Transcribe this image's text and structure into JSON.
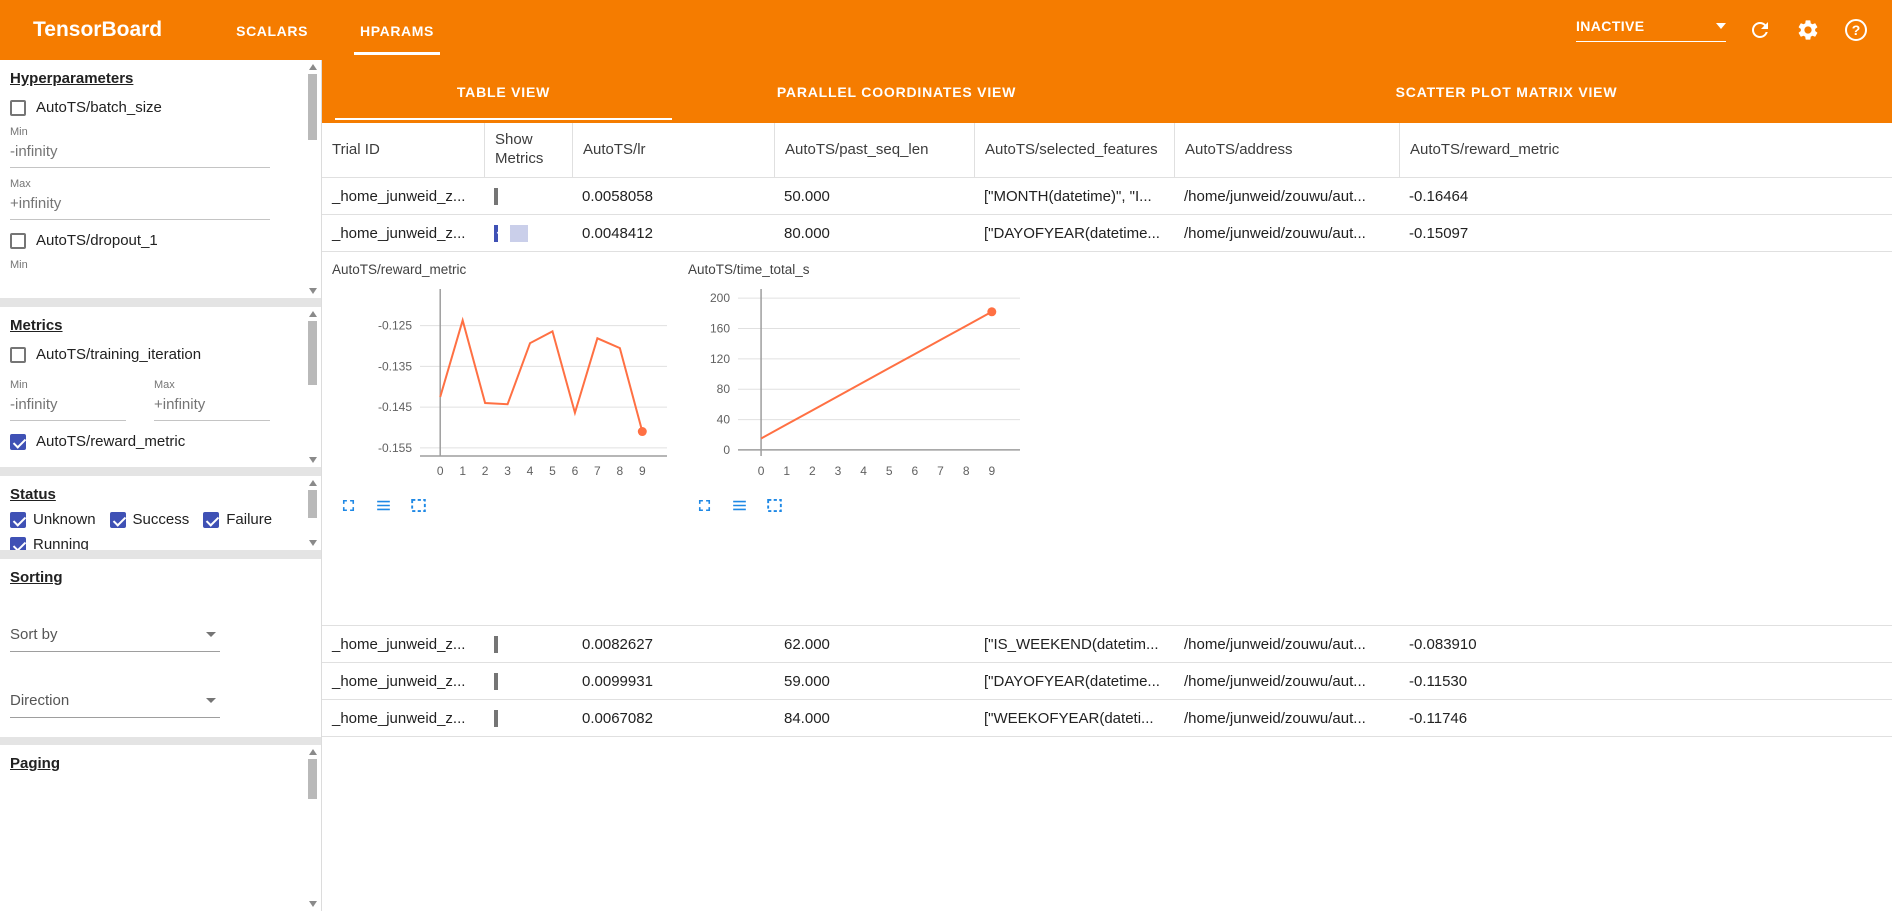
{
  "header": {
    "title": "TensorBoard",
    "nav_tabs": [
      {
        "label": "SCALARS"
      },
      {
        "label": "HPARAMS"
      }
    ],
    "run_status": "INACTIVE"
  },
  "sidebar": {
    "hparams": {
      "heading": "Hyperparameters",
      "items": [
        {
          "label": "AutoTS/batch_size",
          "checked": false
        },
        {
          "label": "AutoTS/dropout_1",
          "checked": false
        }
      ],
      "min_label": "Min",
      "max_label": "Max",
      "min_value": "-infinity",
      "max_value": "+infinity"
    },
    "metrics": {
      "heading": "Metrics",
      "items": [
        {
          "label": "AutoTS/training_iteration",
          "checked": false
        },
        {
          "label": "AutoTS/reward_metric",
          "checked": true
        }
      ],
      "min_label": "Min",
      "max_label": "Max",
      "min_value": "-infinity",
      "max_value": "+infinity"
    },
    "status": {
      "heading": "Status",
      "items": [
        {
          "label": "Unknown",
          "checked": true
        },
        {
          "label": "Success",
          "checked": true
        },
        {
          "label": "Failure",
          "checked": true
        },
        {
          "label": "Running",
          "checked": true
        }
      ]
    },
    "sorting": {
      "heading": "Sorting",
      "sort_by_label": "Sort by",
      "direction_label": "Direction"
    },
    "paging": {
      "heading": "Paging"
    }
  },
  "views": {
    "tabs": [
      {
        "label": "TABLE VIEW",
        "active": true
      },
      {
        "label": "PARALLEL COORDINATES VIEW",
        "active": false
      },
      {
        "label": "SCATTER PLOT MATRIX VIEW",
        "active": false
      }
    ]
  },
  "table": {
    "columns": [
      "Trial ID",
      "Show Metrics",
      "AutoTS/lr",
      "AutoTS/past_seq_len",
      "AutoTS/selected_features",
      "AutoTS/address",
      "AutoTS/reward_metric"
    ],
    "rows": [
      {
        "trial_id": "_home_junweid_z...",
        "show_metrics": false,
        "lr": "0.0058058",
        "past_seq_len": "50.000",
        "selected_features": "[\"MONTH(datetime)\", \"I...",
        "address": "/home/junweid/zouwu/aut...",
        "reward_metric": "-0.16464"
      },
      {
        "trial_id": "_home_junweid_z...",
        "show_metrics": true,
        "lr": "0.0048412",
        "past_seq_len": "80.000",
        "selected_features": "[\"DAYOFYEAR(datetime...",
        "address": "/home/junweid/zouwu/aut...",
        "reward_metric": "-0.15097"
      },
      {
        "trial_id": "_home_junweid_z...",
        "show_metrics": false,
        "lr": "0.0082627",
        "past_seq_len": "62.000",
        "selected_features": "[\"IS_WEEKEND(datetim...",
        "address": "/home/junweid/zouwu/aut...",
        "reward_metric": "-0.083910"
      },
      {
        "trial_id": "_home_junweid_z...",
        "show_metrics": false,
        "lr": "0.0099931",
        "past_seq_len": "59.000",
        "selected_features": "[\"DAYOFYEAR(datetime...",
        "address": "/home/junweid/zouwu/aut...",
        "reward_metric": "-0.11530"
      },
      {
        "trial_id": "_home_junweid_z...",
        "show_metrics": false,
        "lr": "0.0067082",
        "past_seq_len": "84.000",
        "selected_features": "[\"WEEKOFYEAR(dateti...",
        "address": "/home/junweid/zouwu/aut...",
        "reward_metric": "-0.11746"
      }
    ]
  },
  "chart_data": [
    {
      "type": "line",
      "title": "AutoTS/reward_metric",
      "x": [
        0,
        1,
        2,
        3,
        4,
        5,
        6,
        7,
        8,
        9
      ],
      "values": [
        -0.1425,
        -0.1237,
        -0.144,
        -0.1443,
        -0.1293,
        -0.1264,
        -0.1464,
        -0.1281,
        -0.1305,
        -0.151
      ],
      "xlim": [
        -0.9,
        10.1
      ],
      "ylim": [
        -0.157,
        -0.116
      ],
      "yticks": [
        -0.125,
        -0.135,
        -0.145,
        -0.155
      ],
      "ytick_labels": [
        "-0.125",
        "-0.135",
        "-0.145",
        "-0.155"
      ],
      "xticks": [
        0,
        1,
        2,
        3,
        4,
        5,
        6,
        7,
        8,
        9
      ],
      "baseline_y": -0.157,
      "line_color": "#ff7043",
      "endpoint_dot": true,
      "grid": true,
      "legend": "none"
    },
    {
      "type": "line",
      "title": "AutoTS/time_total_s",
      "x": [
        0,
        1,
        2,
        3,
        4,
        5,
        6,
        7,
        8,
        9
      ],
      "values": [
        15,
        33.6,
        52.1,
        70.7,
        89.3,
        107.9,
        126.4,
        145.0,
        163.5,
        182
      ],
      "xlim": [
        -0.9,
        10.1
      ],
      "ylim": [
        -8,
        212
      ],
      "yticks": [
        0,
        40,
        80,
        120,
        160,
        200
      ],
      "ytick_labels": [
        "0",
        "40",
        "80",
        "120",
        "160",
        "200"
      ],
      "xticks": [
        0,
        1,
        2,
        3,
        4,
        5,
        6,
        7,
        8,
        9
      ],
      "baseline_y": 0,
      "line_color": "#ff7043",
      "endpoint_dot": true,
      "grid": true,
      "legend": "none"
    }
  ]
}
